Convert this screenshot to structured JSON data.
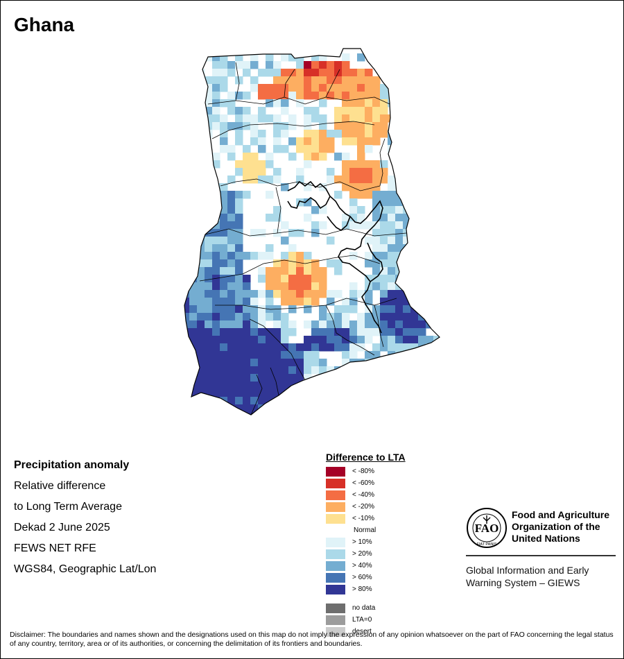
{
  "map_title": "Ghana",
  "info": {
    "heading": "Precipitation anomaly",
    "lines": [
      "Relative difference",
      "to Long Term Average",
      "Dekad 2 June 2025",
      "FEWS NET RFE",
      "WGS84, Geographic Lat/Lon"
    ]
  },
  "legend": {
    "title": "Difference to LTA",
    "items": [
      {
        "label": "< -80%",
        "color": "#a50026"
      },
      {
        "label": "< -60%",
        "color": "#d73027"
      },
      {
        "label": "< -40%",
        "color": "#f46d43"
      },
      {
        "label": "< -20%",
        "color": "#fdae61"
      },
      {
        "label": "< -10%",
        "color": "#fee090"
      },
      {
        "label": "Normal",
        "color": "#ffffff"
      },
      {
        "label": "> 10%",
        "color": "#e0f3f8"
      },
      {
        "label": "> 20%",
        "color": "#abd9e9"
      },
      {
        "label": "> 40%",
        "color": "#74add1"
      },
      {
        "label": "> 60%",
        "color": "#4575b4"
      },
      {
        "label": "> 80%",
        "color": "#313695"
      }
    ],
    "extra": [
      {
        "label": "no data",
        "color": "#6e6e6e"
      },
      {
        "label": "LTA=0",
        "color": "#9c9c9c"
      },
      {
        "label": "desert",
        "color": "#cccccc"
      }
    ]
  },
  "organization": {
    "logo_letters": "FAO",
    "logo_motto": "FIAT PANIS",
    "name_lines": [
      "Food and Agriculture",
      "Organization of the",
      "United Nations"
    ],
    "system_lines": [
      "Global Information and Early",
      "Warning System – GIEWS"
    ]
  },
  "disclaimer": "Disclaimer: The boundaries and names shown and the designations used on this map do not imply the expression of any opinion whatsoever on the part of FAO concerning the legal status of any country, territory, area or of its authorities, or concerning the delimitation of its frontiers and boundaries.",
  "colors": {
    "border": "#000000",
    "water_line": "#000000"
  }
}
